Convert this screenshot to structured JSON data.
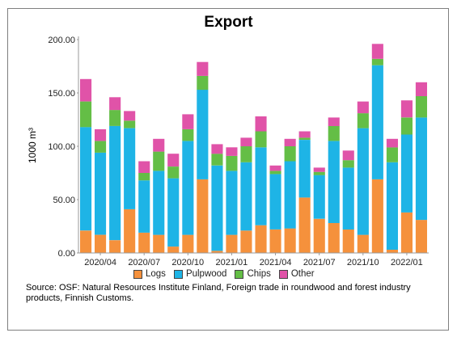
{
  "chart_data": {
    "type": "bar",
    "stacked": true,
    "title": "Export",
    "ylabel": "1000 m³",
    "xlabel": "",
    "ylim": [
      0,
      200
    ],
    "yticks": [
      "0.00",
      "50.00",
      "100.00",
      "150.00",
      "200.00"
    ],
    "xtick_labels": [
      {
        "index": 1,
        "label": "2020/04"
      },
      {
        "index": 4,
        "label": "2020/07"
      },
      {
        "index": 7,
        "label": "2020/10"
      },
      {
        "index": 10,
        "label": "2021/01"
      },
      {
        "index": 13,
        "label": "2021/04"
      },
      {
        "index": 16,
        "label": "2021/07"
      },
      {
        "index": 19,
        "label": "2021/10"
      },
      {
        "index": 22,
        "label": "2022/01"
      }
    ],
    "categories": [
      "2020/03",
      "2020/04",
      "2020/05",
      "2020/06",
      "2020/07",
      "2020/08",
      "2020/09",
      "2020/10",
      "2020/11",
      "2020/12",
      "2021/01",
      "2021/02",
      "2021/03",
      "2021/04",
      "2021/05",
      "2021/06",
      "2021/07",
      "2021/08",
      "2021/09",
      "2021/10",
      "2021/11",
      "2021/12",
      "2022/01",
      "2022/02"
    ],
    "series": [
      {
        "name": "Logs",
        "color": "#f5913c",
        "values": [
          21,
          17,
          12,
          41,
          19,
          17,
          6,
          17,
          69,
          2,
          17,
          21,
          26,
          22,
          23,
          52,
          32,
          28,
          22,
          17,
          69,
          3,
          38,
          31
        ]
      },
      {
        "name": "Pulpwood",
        "color": "#1eb4e6",
        "values": [
          97,
          77,
          107,
          76,
          49,
          60,
          64,
          88,
          84,
          80,
          60,
          64,
          73,
          52,
          63,
          54,
          41,
          77,
          58,
          100,
          107,
          82,
          73,
          96
        ]
      },
      {
        "name": "Chips",
        "color": "#64be46",
        "values": [
          24,
          11,
          15,
          7,
          7,
          18,
          11,
          11,
          13,
          11,
          14,
          15,
          15,
          3,
          14,
          2,
          3,
          14,
          7,
          14,
          6,
          14,
          16,
          20
        ]
      },
      {
        "name": "Other",
        "color": "#e053a8",
        "values": [
          21,
          11,
          12,
          9,
          11,
          12,
          12,
          14,
          13,
          9,
          8,
          8,
          14,
          5,
          7,
          6,
          4,
          8,
          9,
          11,
          14,
          8,
          16,
          13
        ]
      }
    ],
    "grid": false,
    "legend_position": "bottom"
  },
  "source_text": "Source: OSF: Natural Resources Institute Finland, Foreign trade in roundwood and forest industry products, Finnish Customs."
}
